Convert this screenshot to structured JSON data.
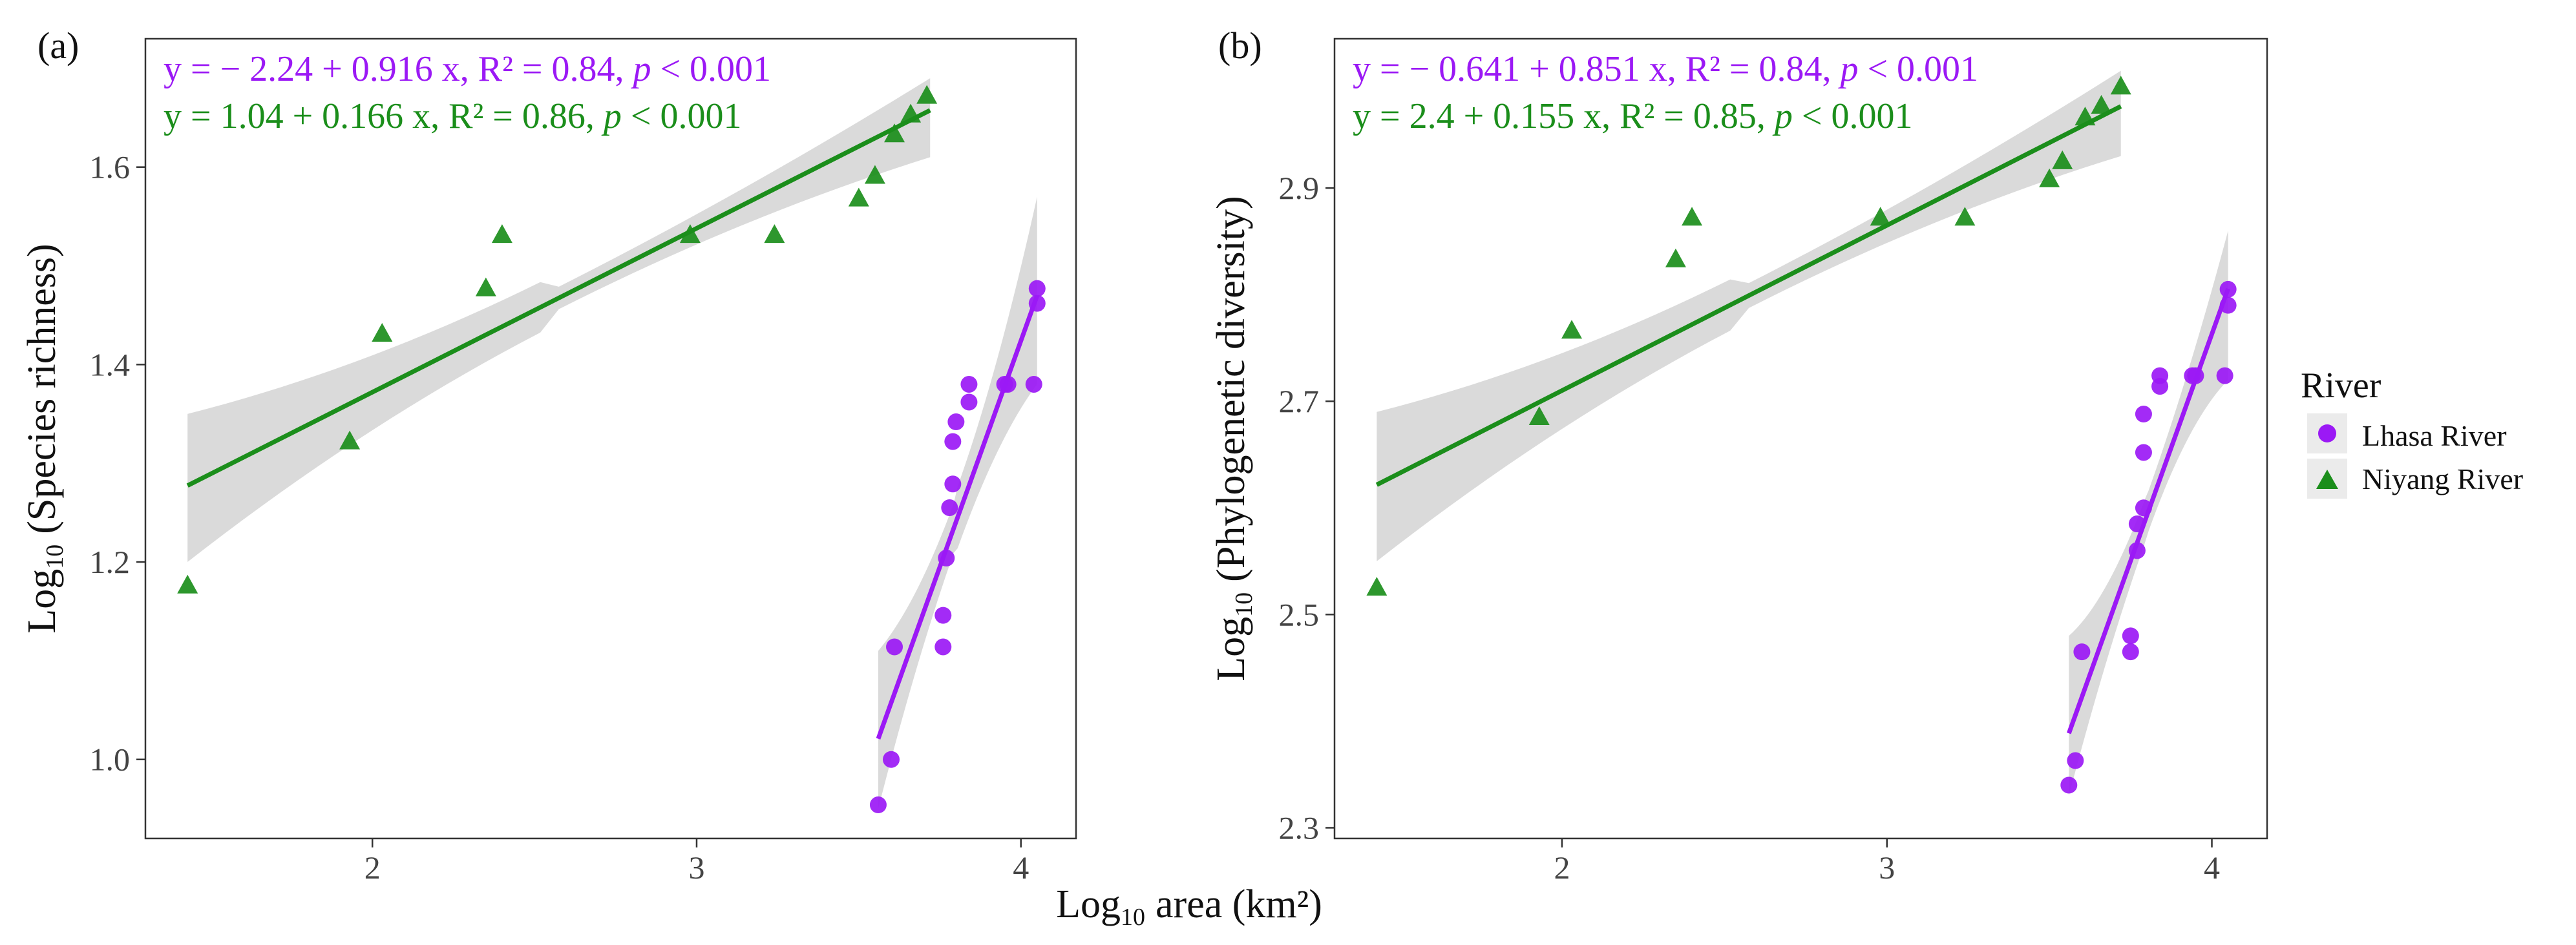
{
  "figure": {
    "shared_xlabel_main": "Log",
    "shared_xlabel_sub": "10",
    "shared_xlabel_rest": "area (km²)"
  },
  "legend": {
    "title": "River",
    "items": [
      {
        "label": "Lhasa River",
        "color": "#9B19F5",
        "shape": "circle"
      },
      {
        "label": "Niyang River",
        "color": "#1B8E1B",
        "shape": "triangle"
      }
    ]
  },
  "colors": {
    "lhasa": "#9B19F5",
    "niyang": "#1B8E1B",
    "ribbon": "#D3D3D3",
    "frame": "#333333"
  },
  "chart_data": [
    {
      "type": "scatter",
      "panel": "(a)",
      "title": "",
      "xlabel": "Log10 area (km²)",
      "ylabel_main": "Log",
      "ylabel_sub": "10",
      "ylabel_rest": "(Species richness)",
      "xlim": [
        1.3,
        4.17
      ],
      "ylim": [
        0.92,
        1.73
      ],
      "xticks": [
        2,
        3,
        4
      ],
      "yticks": [
        1.0,
        1.2,
        1.4,
        1.6
      ],
      "ytick_labels": [
        "1.0",
        "1.2",
        "1.4",
        "1.6"
      ],
      "equations": [
        {
          "series": "Lhasa River",
          "prefix": "y = − 2.24 + 0.916 x, R² = 0.84, ",
          "p": "p",
          "suffix": " < 0.001"
        },
        {
          "series": "Niyang River",
          "prefix": "y = 1.04 + 0.166 x, R² = 0.86, ",
          "p": "p",
          "suffix": " < 0.001"
        }
      ],
      "series": [
        {
          "name": "Lhasa River",
          "marker": "circle",
          "fit": {
            "intercept": -2.24,
            "slope": 0.916,
            "x_range": [
              3.56,
              4.05
            ],
            "ci_lo": [
              0.95,
              1.38
            ],
            "ci_hi": [
              1.11,
              1.57
            ]
          },
          "points": [
            [
              3.56,
              0.954
            ],
            [
              3.6,
              1.0
            ],
            [
              3.61,
              1.114
            ],
            [
              3.76,
              1.146
            ],
            [
              3.76,
              1.114
            ],
            [
              3.77,
              1.204
            ],
            [
              3.78,
              1.255
            ],
            [
              3.79,
              1.279
            ],
            [
              3.79,
              1.322
            ],
            [
              3.8,
              1.342
            ],
            [
              3.84,
              1.362
            ],
            [
              3.84,
              1.38
            ],
            [
              3.95,
              1.38
            ],
            [
              3.96,
              1.38
            ],
            [
              4.04,
              1.38
            ],
            [
              4.05,
              1.462
            ],
            [
              4.05,
              1.477
            ]
          ]
        },
        {
          "name": "Niyang River",
          "marker": "triangle",
          "fit": {
            "intercept": 1.04,
            "slope": 0.166,
            "x_range": [
              1.43,
              3.72
            ],
            "ci_lo": [
              1.2,
              1.61
            ],
            "ci_hi": [
              1.35,
              1.69
            ]
          },
          "points": [
            [
              1.43,
              1.176
            ],
            [
              1.93,
              1.322
            ],
            [
              2.03,
              1.431
            ],
            [
              2.35,
              1.477
            ],
            [
              2.4,
              1.531
            ],
            [
              2.98,
              1.531
            ],
            [
              3.24,
              1.531
            ],
            [
              3.5,
              1.568
            ],
            [
              3.55,
              1.591
            ],
            [
              3.61,
              1.633
            ],
            [
              3.66,
              1.653
            ],
            [
              3.71,
              1.672
            ]
          ]
        }
      ]
    },
    {
      "type": "scatter",
      "panel": "(b)",
      "title": "",
      "xlabel": "Log10 area (km²)",
      "ylabel_main": "Log",
      "ylabel_sub": "10",
      "ylabel_rest": "(Phylogenetic diversity)",
      "xlim": [
        1.3,
        4.17
      ],
      "ylim": [
        2.29,
        3.04
      ],
      "xticks": [
        2,
        3,
        4
      ],
      "yticks": [
        2.3,
        2.5,
        2.7,
        2.9
      ],
      "ytick_labels": [
        "2.3",
        "2.5",
        "2.7",
        "2.9"
      ],
      "equations": [
        {
          "series": "Lhasa River",
          "prefix": "y = − 0.641 + 0.851 x, R² = 0.84, ",
          "p": "p",
          "suffix": " < 0.001"
        },
        {
          "series": "Niyang River",
          "prefix": "y = 2.4 + 0.155 x, R² = 0.85, ",
          "p": "p",
          "suffix": " < 0.001"
        }
      ],
      "series": [
        {
          "name": "Lhasa River",
          "marker": "circle",
          "fit": {
            "intercept": -0.641,
            "slope": 0.851,
            "x_range": [
              3.56,
              4.05
            ],
            "ci_lo": [
              2.33,
              2.72
            ],
            "ci_hi": [
              2.48,
              2.86
            ]
          },
          "points": [
            [
              3.56,
              2.34
            ],
            [
              3.58,
              2.363
            ],
            [
              3.6,
              2.465
            ],
            [
              3.75,
              2.465
            ],
            [
              3.75,
              2.48
            ],
            [
              3.77,
              2.56
            ],
            [
              3.77,
              2.585
            ],
            [
              3.79,
              2.6
            ],
            [
              3.79,
              2.652
            ],
            [
              3.79,
              2.688
            ],
            [
              3.84,
              2.714
            ],
            [
              3.84,
              2.724
            ],
            [
              3.94,
              2.724
            ],
            [
              3.95,
              2.724
            ],
            [
              4.04,
              2.724
            ],
            [
              4.05,
              2.79
            ],
            [
              4.05,
              2.805
            ]
          ]
        },
        {
          "name": "Niyang River",
          "marker": "triangle",
          "fit": {
            "intercept": 2.4,
            "slope": 0.155,
            "x_range": [
              1.43,
              3.72
            ],
            "ci_lo": [
              2.55,
              2.93
            ],
            "ci_hi": [
              2.69,
              3.01
            ]
          },
          "points": [
            [
              1.43,
              2.525
            ],
            [
              1.93,
              2.685
            ],
            [
              2.03,
              2.766
            ],
            [
              2.35,
              2.833
            ],
            [
              2.4,
              2.872
            ],
            [
              2.98,
              2.872
            ],
            [
              3.24,
              2.872
            ],
            [
              3.5,
              2.908
            ],
            [
              3.54,
              2.925
            ],
            [
              3.61,
              2.966
            ],
            [
              3.66,
              2.977
            ],
            [
              3.72,
              2.995
            ]
          ]
        }
      ]
    }
  ]
}
